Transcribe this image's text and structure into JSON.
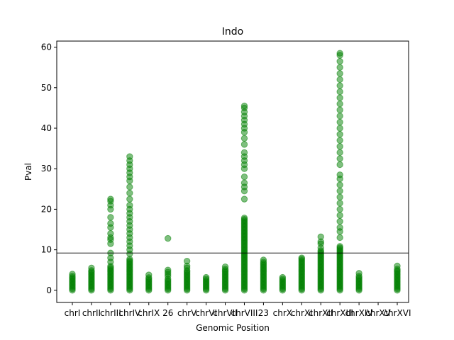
{
  "chart_data": {
    "type": "scatter",
    "title": "Indo",
    "xlabel": "Genomic Position",
    "ylabel": "Pval",
    "ylim": [
      -3,
      61.5
    ],
    "yticks": [
      0,
      10,
      20,
      30,
      40,
      50,
      60
    ],
    "grid": false,
    "marker_color": "#008000",
    "marker_alpha": 0.5,
    "threshold": 9.2,
    "threshold_color": "#000000",
    "categories": [
      "chrI",
      "chrII",
      "chrIII",
      "chrIV",
      "chrIX",
      "26",
      "chrV",
      "chrVI",
      "chrVII",
      "chrVIII",
      "23",
      "chrX",
      "chrXI",
      "chrXII",
      "chrXIII",
      "chrXIV",
      "chrXV",
      "chrXVI"
    ],
    "columns": [
      {
        "category": "chrI",
        "max": 4.0,
        "dense_max": 3.5,
        "extra": [
          4.0
        ]
      },
      {
        "category": "chrII",
        "max": 5.5,
        "dense_max": 5.2,
        "extra": [
          5.5
        ]
      },
      {
        "category": "chrIII",
        "max": 22.5,
        "dense_max": 6.0,
        "extra": [
          7.0,
          8.0,
          9.2,
          11.5,
          12.5,
          13.0,
          14.0,
          15.5,
          16.5,
          18.0,
          20.0,
          21.0,
          22.0,
          22.5
        ]
      },
      {
        "category": "chrIV",
        "max": 33.0,
        "dense_max": 8.0,
        "extra": [
          9.0,
          10.0,
          11.0,
          12.0,
          13.0,
          14.0,
          15.0,
          16.0,
          17.0,
          18.0,
          19.0,
          20.0,
          21.0,
          22.5,
          24.0,
          25.5,
          27.0,
          28.0,
          29.0,
          30.0,
          31.0,
          32.0,
          33.0
        ]
      },
      {
        "category": "chrIX",
        "max": 3.8,
        "dense_max": 3.4,
        "extra": [
          3.8
        ]
      },
      {
        "category": "26",
        "max": 12.8,
        "dense_max": 3.0,
        "extra": [
          3.5,
          4.0,
          4.5,
          5.0,
          12.8
        ]
      },
      {
        "category": "chrV",
        "max": 7.2,
        "dense_max": 5.0,
        "extra": [
          5.5,
          6.0,
          7.2
        ]
      },
      {
        "category": "chrVI",
        "max": 3.2,
        "dense_max": 3.0,
        "extra": [
          3.2
        ]
      },
      {
        "category": "chrVII",
        "max": 5.8,
        "dense_max": 5.5,
        "extra": [
          5.8
        ]
      },
      {
        "category": "chrVIII",
        "max": 45.5,
        "dense_max": 18.0,
        "extra": [
          22.5,
          24.5,
          25.5,
          26.5,
          28.0,
          30.0,
          31.0,
          32.0,
          33.0,
          34.0,
          36.0,
          37.5,
          39.0,
          40.0,
          41.0,
          42.0,
          43.0,
          44.0,
          45.0,
          45.5
        ]
      },
      {
        "category": "23",
        "max": 7.5,
        "dense_max": 7.0,
        "extra": [
          7.5
        ]
      },
      {
        "category": "chrX",
        "max": 3.2,
        "dense_max": 3.0,
        "extra": [
          3.2
        ]
      },
      {
        "category": "chrXI",
        "max": 8.0,
        "dense_max": 7.8,
        "extra": [
          8.0
        ]
      },
      {
        "category": "chrXII",
        "max": 13.2,
        "dense_max": 10.0,
        "extra": [
          10.5,
          11.5,
          12.0,
          13.2
        ]
      },
      {
        "category": "chrXIII",
        "max": 58.5,
        "dense_max": 11.0,
        "extra": [
          13.0,
          14.5,
          15.5,
          17.0,
          18.5,
          20.0,
          21.5,
          23.0,
          24.5,
          26.0,
          27.5,
          28.5,
          31.0,
          32.5,
          34.0,
          35.5,
          37.0,
          38.5,
          40.0,
          41.5,
          43.0,
          44.5,
          46.0,
          47.5,
          49.0,
          50.5,
          52.0,
          53.5,
          55.0,
          56.5,
          58.0,
          58.5
        ]
      },
      {
        "category": "chrXIV",
        "max": 4.2,
        "dense_max": 3.8,
        "extra": [
          4.2
        ]
      },
      {
        "category": "chrXV",
        "max": 0,
        "dense_max": 0,
        "extra": []
      },
      {
        "category": "chrXVI",
        "max": 6.0,
        "dense_max": 5.5,
        "extra": [
          6.0
        ]
      }
    ]
  }
}
